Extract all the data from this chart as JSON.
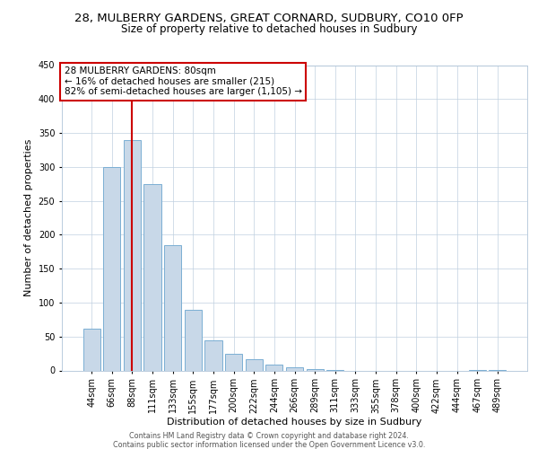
{
  "title": "28, MULBERRY GARDENS, GREAT CORNARD, SUDBURY, CO10 0FP",
  "subtitle": "Size of property relative to detached houses in Sudbury",
  "xlabel": "Distribution of detached houses by size in Sudbury",
  "ylabel": "Number of detached properties",
  "bar_labels": [
    "44sqm",
    "66sqm",
    "88sqm",
    "111sqm",
    "133sqm",
    "155sqm",
    "177sqm",
    "200sqm",
    "222sqm",
    "244sqm",
    "266sqm",
    "289sqm",
    "311sqm",
    "333sqm",
    "355sqm",
    "378sqm",
    "400sqm",
    "422sqm",
    "444sqm",
    "467sqm",
    "489sqm"
  ],
  "bar_values": [
    62,
    300,
    340,
    275,
    185,
    90,
    45,
    24,
    16,
    8,
    4,
    2,
    1,
    0,
    0,
    0,
    0,
    0,
    0,
    1,
    1
  ],
  "bar_color": "#c8d8e8",
  "bar_edge_color": "#7bafd4",
  "vline_x": 2,
  "vline_color": "#cc0000",
  "ylim": [
    0,
    450
  ],
  "yticks": [
    0,
    50,
    100,
    150,
    200,
    250,
    300,
    350,
    400,
    450
  ],
  "annotation_text": "28 MULBERRY GARDENS: 80sqm\n← 16% of detached houses are smaller (215)\n82% of semi-detached houses are larger (1,105) →",
  "footnote1": "Contains HM Land Registry data © Crown copyright and database right 2024.",
  "footnote2": "Contains public sector information licensed under the Open Government Licence v3.0.",
  "box_color": "#ffffff",
  "box_edge_color": "#cc0000",
  "title_fontsize": 9.5,
  "subtitle_fontsize": 8.5,
  "tick_fontsize": 7,
  "label_fontsize": 8,
  "annotation_fontsize": 7.5,
  "footnote_fontsize": 5.8
}
